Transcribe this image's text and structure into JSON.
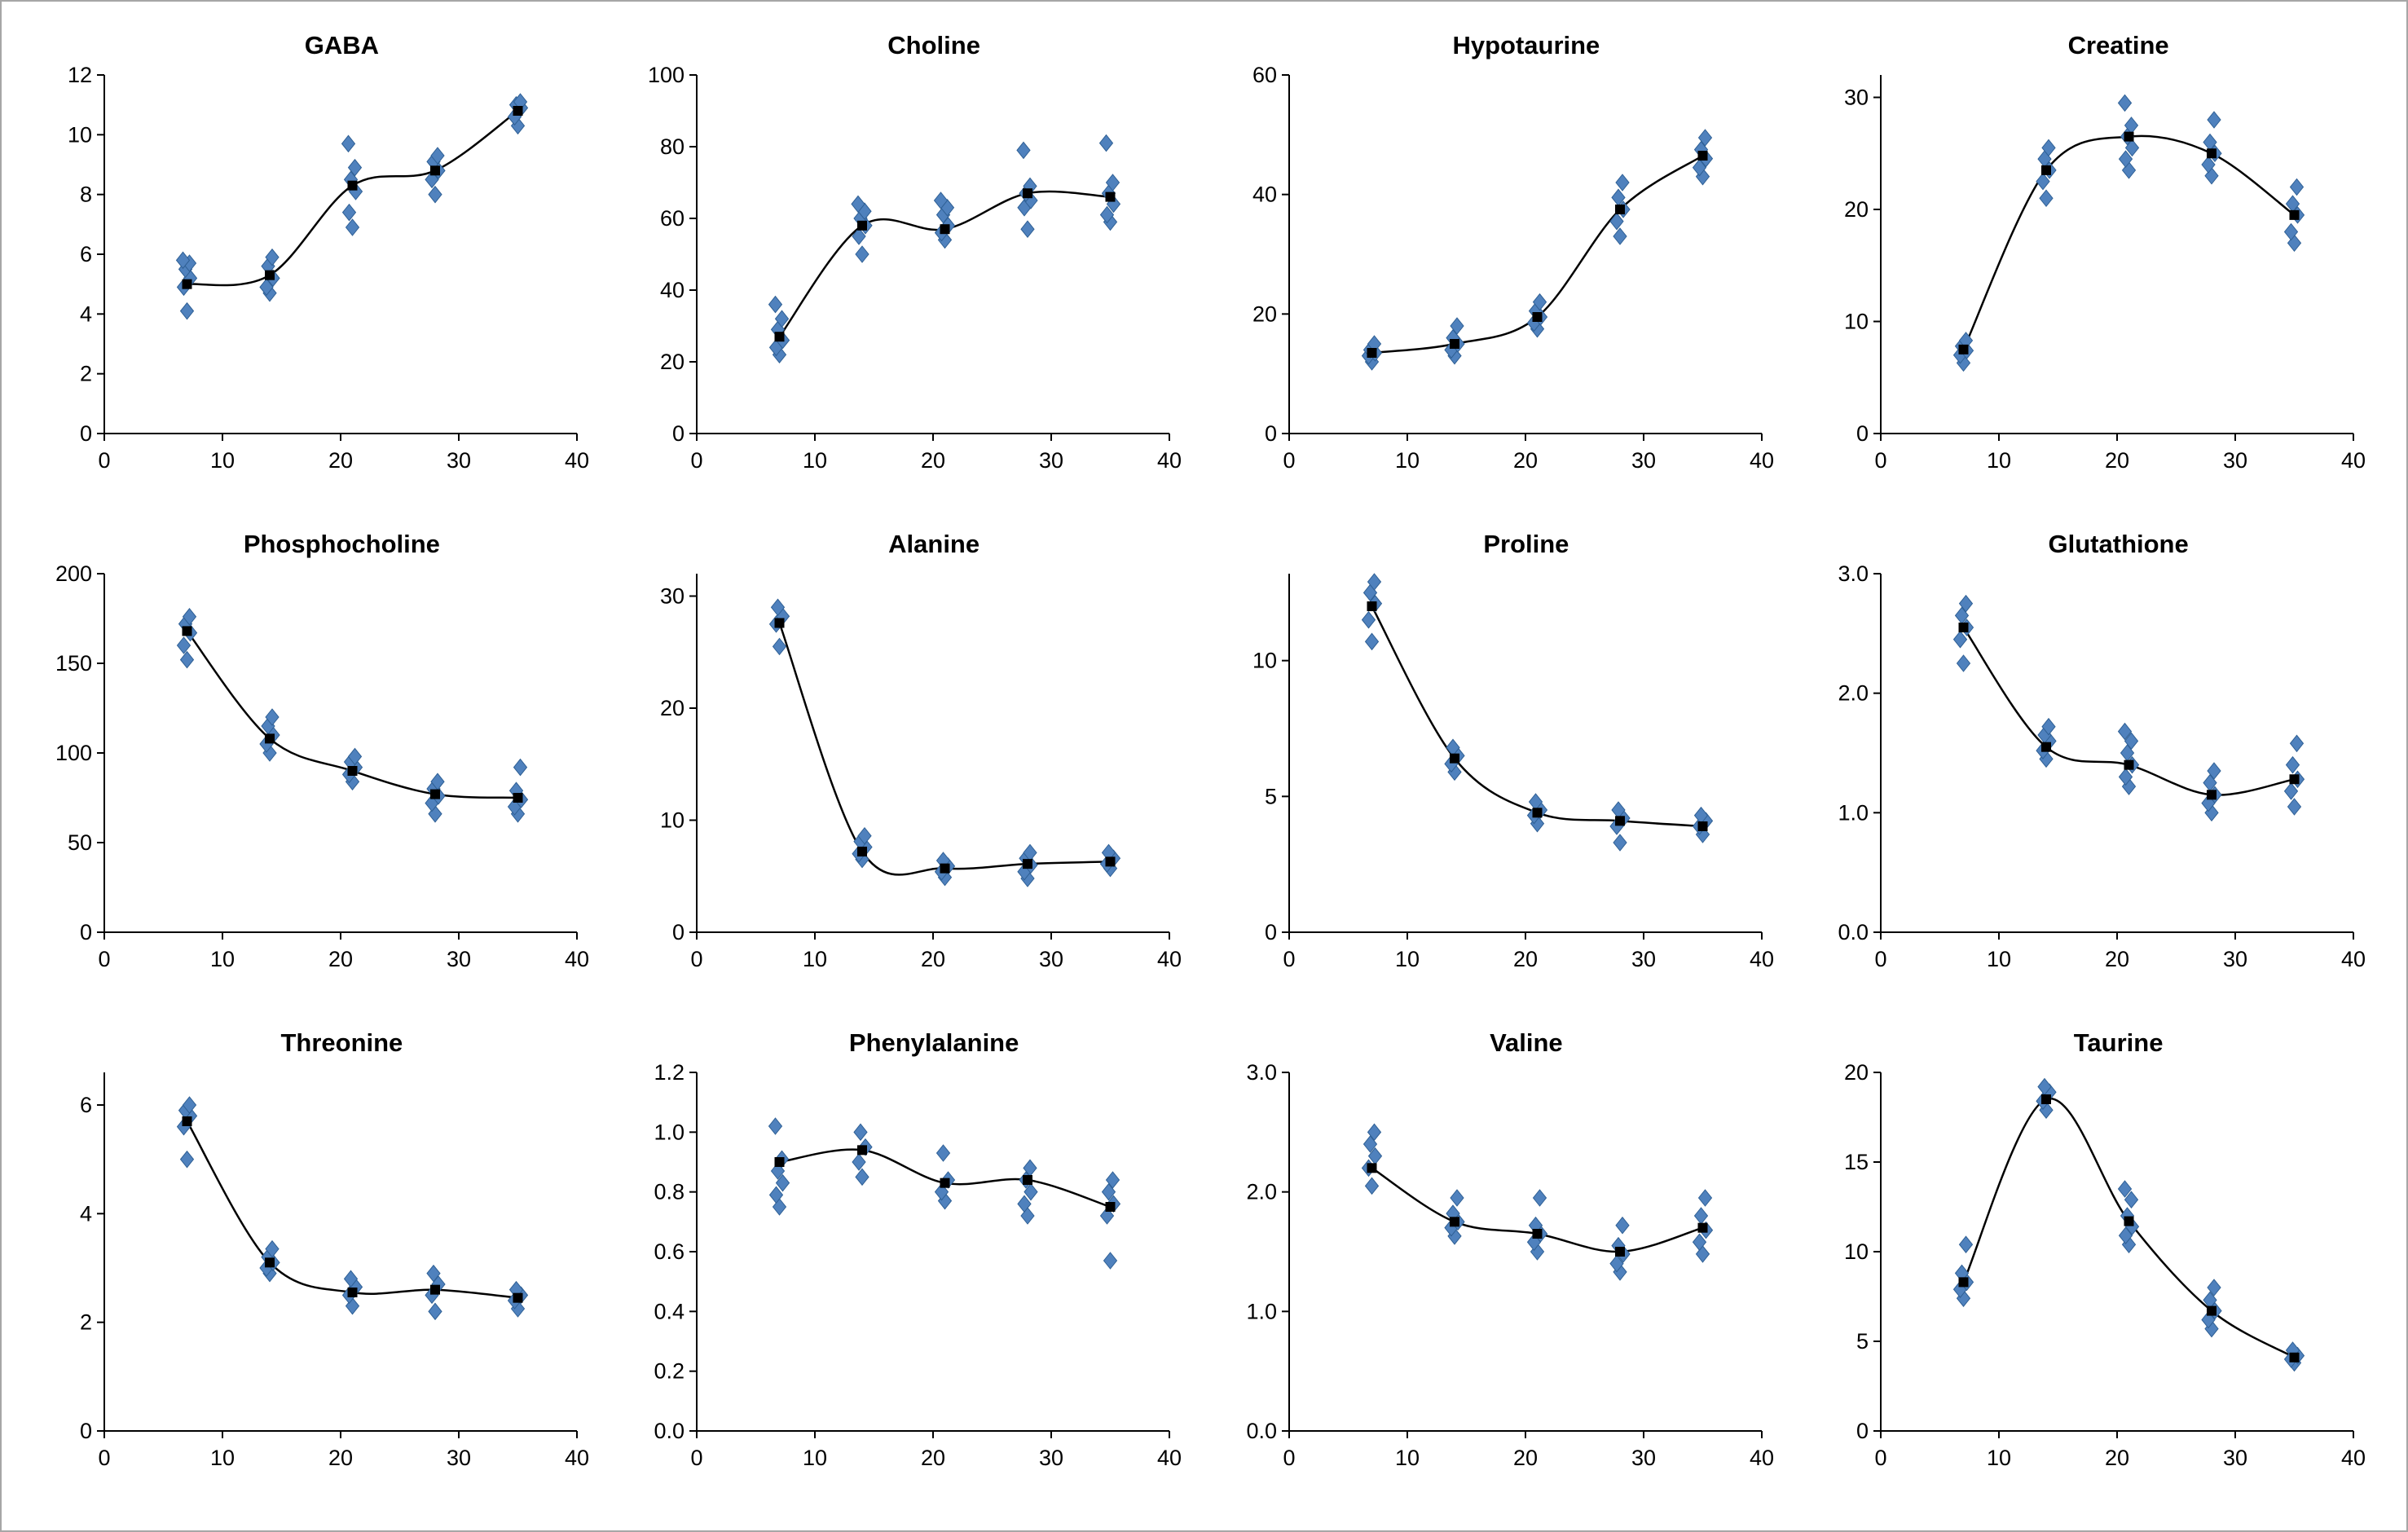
{
  "figure": {
    "background": "#ffffff",
    "border_color": "#a6a6a6"
  },
  "style": {
    "scatter_color": "#4f81bd",
    "scatter_edge": "#2e5f94",
    "mean_color": "#000000",
    "line_color": "#000000",
    "axis_color": "#000000"
  },
  "x_axis": {
    "lim": [
      0,
      40
    ],
    "ticks": [
      0,
      10,
      20,
      30,
      40
    ]
  },
  "chart_data": [
    {
      "type": "scatter",
      "title": "GABA",
      "ylim": [
        0,
        12
      ],
      "y_ticks": [
        0,
        2,
        4,
        6,
        8,
        10,
        12
      ],
      "y_decimals": 0,
      "x": [
        7,
        14,
        21,
        28,
        35
      ],
      "replicates": [
        [
          4.1,
          4.9,
          5.2,
          5.5,
          5.7,
          5.8
        ],
        [
          4.7,
          4.9,
          5.2,
          5.6,
          5.9
        ],
        [
          6.9,
          7.4,
          8.1,
          8.5,
          8.9,
          9.7
        ],
        [
          8.0,
          8.5,
          8.8,
          9.1,
          9.3
        ],
        [
          10.3,
          10.6,
          10.9,
          11.0,
          11.1
        ]
      ],
      "means": [
        5.0,
        5.3,
        8.3,
        8.8,
        10.8
      ]
    },
    {
      "type": "scatter",
      "title": "Choline",
      "ylim": [
        0,
        100
      ],
      "y_ticks": [
        0,
        20,
        40,
        60,
        80,
        100
      ],
      "y_decimals": 0,
      "x": [
        7,
        14,
        21,
        28,
        35
      ],
      "replicates": [
        [
          22,
          24,
          26,
          29,
          32,
          36
        ],
        [
          50,
          55,
          58,
          60,
          62,
          64
        ],
        [
          54,
          56,
          58,
          61,
          63,
          65
        ],
        [
          57,
          63,
          65,
          67,
          69,
          79
        ],
        [
          59,
          61,
          64,
          67,
          70,
          81
        ]
      ],
      "means": [
        27,
        58,
        57,
        67,
        66
      ]
    },
    {
      "type": "scatter",
      "title": "Hypotaurine",
      "ylim": [
        0,
        60
      ],
      "y_ticks": [
        0,
        20,
        40,
        60
      ],
      "y_decimals": 0,
      "x": [
        7,
        14,
        21,
        28,
        35
      ],
      "replicates": [
        [
          12,
          13,
          13.5,
          14,
          15
        ],
        [
          13,
          14,
          15,
          16,
          18
        ],
        [
          17.5,
          18.5,
          19.5,
          20.5,
          22
        ],
        [
          33,
          35.5,
          37.5,
          39.5,
          42
        ],
        [
          43,
          44.5,
          46,
          47.5,
          49.5
        ]
      ],
      "means": [
        13.5,
        15,
        19.5,
        37.5,
        46.5
      ]
    },
    {
      "type": "scatter",
      "title": "Creatine",
      "ylim": [
        0,
        32
      ],
      "y_ticks": [
        0,
        10,
        20,
        30
      ],
      "y_decimals": 0,
      "x": [
        7,
        14,
        21,
        28,
        35
      ],
      "replicates": [
        [
          6.3,
          7.0,
          7.4,
          7.8,
          8.3
        ],
        [
          21,
          22.5,
          23.5,
          24.5,
          25.5
        ],
        [
          23.5,
          24.5,
          25.5,
          26.5,
          27.5,
          29.5
        ],
        [
          23,
          24,
          25,
          26,
          28
        ],
        [
          17,
          18,
          19.5,
          20.5,
          22
        ]
      ],
      "means": [
        7.5,
        23.5,
        26.5,
        25,
        19.5
      ]
    },
    {
      "type": "scatter",
      "title": "Phosphocholine",
      "ylim": [
        0,
        200
      ],
      "y_ticks": [
        0,
        50,
        100,
        150,
        200
      ],
      "y_decimals": 0,
      "x": [
        7,
        14,
        21,
        28,
        35
      ],
      "replicates": [
        [
          152,
          160,
          167,
          172,
          176
        ],
        [
          100,
          105,
          110,
          115,
          120
        ],
        [
          84,
          88,
          92,
          95,
          98
        ],
        [
          66,
          72,
          76,
          80,
          84
        ],
        [
          66,
          70,
          74,
          79,
          92
        ]
      ],
      "means": [
        168,
        108,
        90,
        77,
        75
      ]
    },
    {
      "type": "scatter",
      "title": "Alanine",
      "ylim": [
        0,
        32
      ],
      "y_ticks": [
        0,
        10,
        20,
        30
      ],
      "y_decimals": 0,
      "x": [
        7,
        14,
        21,
        28,
        35
      ],
      "replicates": [
        [
          25.5,
          27.5,
          28.2,
          29.0
        ],
        [
          6.5,
          7.0,
          7.6,
          8.1,
          8.6
        ],
        [
          4.9,
          5.4,
          5.9,
          6.4
        ],
        [
          4.8,
          5.4,
          6.0,
          6.6,
          7.1
        ],
        [
          5.7,
          6.1,
          6.6,
          7.1
        ]
      ],
      "means": [
        27.6,
        7.2,
        5.7,
        6.1,
        6.3
      ]
    },
    {
      "type": "scatter",
      "title": "Proline",
      "ylim": [
        0,
        13.2
      ],
      "y_ticks": [
        0,
        5,
        10
      ],
      "y_decimals": 0,
      "x": [
        7,
        14,
        21,
        28,
        35
      ],
      "replicates": [
        [
          10.7,
          11.5,
          12.1,
          12.5,
          12.9
        ],
        [
          5.9,
          6.2,
          6.5,
          6.8
        ],
        [
          4.0,
          4.3,
          4.5,
          4.8
        ],
        [
          3.3,
          3.9,
          4.2,
          4.5
        ],
        [
          3.6,
          3.9,
          4.1,
          4.3
        ]
      ],
      "means": [
        12.0,
        6.4,
        4.4,
        4.1,
        3.9
      ]
    },
    {
      "type": "scatter",
      "title": "Glutathione",
      "ylim": [
        0,
        3.0
      ],
      "y_ticks": [
        0,
        1,
        2,
        3
      ],
      "y_decimals": 1,
      "x": [
        7,
        14,
        21,
        28,
        35
      ],
      "replicates": [
        [
          2.25,
          2.45,
          2.55,
          2.65,
          2.75
        ],
        [
          1.45,
          1.52,
          1.6,
          1.65,
          1.72
        ],
        [
          1.22,
          1.3,
          1.4,
          1.5,
          1.6,
          1.68
        ],
        [
          1.0,
          1.08,
          1.15,
          1.25,
          1.35
        ],
        [
          1.05,
          1.18,
          1.28,
          1.4,
          1.58
        ]
      ],
      "means": [
        2.55,
        1.55,
        1.4,
        1.15,
        1.28
      ]
    },
    {
      "type": "scatter",
      "title": "Threonine",
      "ylim": [
        0,
        6.6
      ],
      "y_ticks": [
        0,
        2,
        4,
        6
      ],
      "y_decimals": 0,
      "x": [
        7,
        14,
        21,
        28,
        35
      ],
      "replicates": [
        [
          5.0,
          5.6,
          5.8,
          5.9,
          6.0
        ],
        [
          2.9,
          3.0,
          3.1,
          3.2,
          3.35
        ],
        [
          2.3,
          2.5,
          2.65,
          2.8
        ],
        [
          2.2,
          2.5,
          2.7,
          2.9
        ],
        [
          2.25,
          2.4,
          2.5,
          2.6
        ]
      ],
      "means": [
        5.7,
        3.1,
        2.55,
        2.6,
        2.45
      ]
    },
    {
      "type": "scatter",
      "title": "Phenylalanine",
      "ylim": [
        0,
        1.2
      ],
      "y_ticks": [
        0,
        0.2,
        0.4,
        0.6,
        0.8,
        1.0,
        1.2
      ],
      "y_decimals": 1,
      "x": [
        7,
        14,
        21,
        28,
        35
      ],
      "replicates": [
        [
          0.75,
          0.79,
          0.83,
          0.87,
          0.91,
          1.02
        ],
        [
          0.85,
          0.9,
          0.95,
          1.0
        ],
        [
          0.77,
          0.8,
          0.84,
          0.93
        ],
        [
          0.72,
          0.76,
          0.8,
          0.84,
          0.88
        ],
        [
          0.57,
          0.72,
          0.76,
          0.8,
          0.84
        ]
      ],
      "means": [
        0.9,
        0.94,
        0.83,
        0.84,
        0.75
      ]
    },
    {
      "type": "scatter",
      "title": "Valine",
      "ylim": [
        0,
        3.0
      ],
      "y_ticks": [
        0,
        1,
        2,
        3
      ],
      "y_decimals": 1,
      "x": [
        7,
        14,
        21,
        28,
        35
      ],
      "replicates": [
        [
          2.05,
          2.2,
          2.3,
          2.4,
          2.5
        ],
        [
          1.63,
          1.7,
          1.75,
          1.82,
          1.95
        ],
        [
          1.5,
          1.58,
          1.65,
          1.72,
          1.95
        ],
        [
          1.33,
          1.4,
          1.48,
          1.55,
          1.72
        ],
        [
          1.48,
          1.58,
          1.68,
          1.8,
          1.95
        ]
      ],
      "means": [
        2.2,
        1.75,
        1.65,
        1.5,
        1.7
      ]
    },
    {
      "type": "scatter",
      "title": "Taurine",
      "ylim": [
        0,
        20
      ],
      "y_ticks": [
        0,
        5,
        10,
        15,
        20
      ],
      "y_decimals": 0,
      "x": [
        7,
        14,
        21,
        28,
        35
      ],
      "replicates": [
        [
          7.4,
          7.9,
          8.3,
          8.8,
          10.4
        ],
        [
          17.9,
          18.4,
          18.9,
          19.2
        ],
        [
          10.4,
          10.9,
          11.4,
          12.0,
          12.9,
          13.5
        ],
        [
          5.7,
          6.2,
          6.7,
          7.3,
          8.0
        ],
        [
          3.8,
          4.0,
          4.2,
          4.5
        ]
      ],
      "means": [
        8.3,
        18.5,
        11.7,
        6.7,
        4.1
      ]
    }
  ]
}
